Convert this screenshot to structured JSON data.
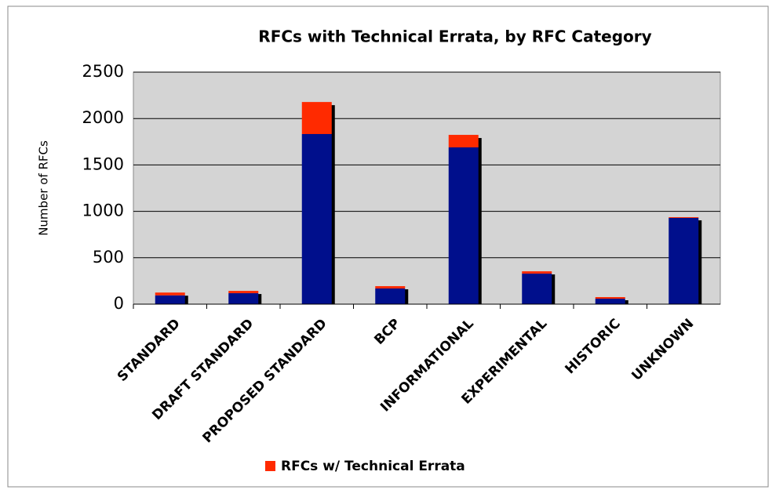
{
  "chart_data": {
    "type": "stacked_bar",
    "title": "RFCs with Technical Errata, by RFC Category",
    "y_label": "Number of RFCs",
    "categories": [
      "STANDARD",
      "DRAFT STANDARD",
      "PROPOSED STANDARD",
      "BCP",
      "INFORMATIONAL",
      "EXPERIMENTAL",
      "HISTORIC",
      "UNKNOWN"
    ],
    "series": [
      {
        "color": "#000f8c",
        "values": [
          95,
          118,
          1833,
          169,
          1689,
          329,
          59,
          929
        ]
      },
      {
        "name": "RFCs w/ Technical Errata",
        "color": "#ff2a00",
        "values": [
          30,
          25,
          345,
          25,
          135,
          25,
          17,
          8
        ]
      }
    ],
    "ylim": [
      0,
      2500
    ],
    "yticks": [
      0,
      500,
      1000,
      1500,
      2000,
      2500
    ],
    "grid": true,
    "legend": "bottom"
  }
}
